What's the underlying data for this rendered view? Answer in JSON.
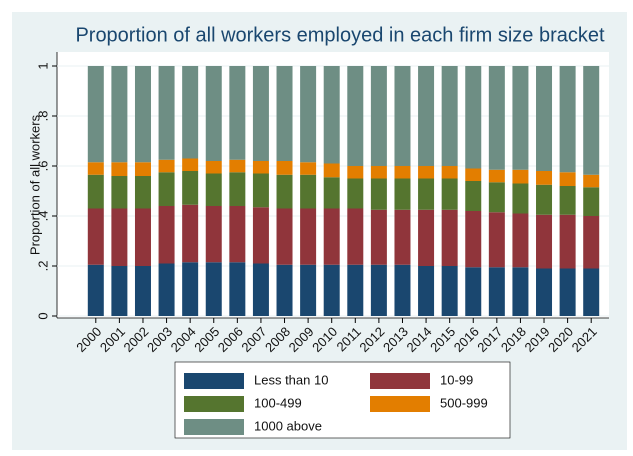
{
  "chart_data": {
    "type": "stacked_bar",
    "title": "Proportion of all workers employed in each firm size bracket",
    "y_label": "Proportion of all workers",
    "categories": [
      "2000",
      "2001",
      "2002",
      "2003",
      "2004",
      "2005",
      "2006",
      "2007",
      "2008",
      "2009",
      "2010",
      "2011",
      "2012",
      "2013",
      "2014",
      "2015",
      "2016",
      "2017",
      "2018",
      "2019",
      "2020",
      "2021"
    ],
    "series": [
      {
        "name": "Less than 10",
        "color": "#1a476f",
        "values": [
          0.205,
          0.2,
          0.2,
          0.21,
          0.215,
          0.215,
          0.215,
          0.21,
          0.205,
          0.205,
          0.205,
          0.205,
          0.205,
          0.205,
          0.2,
          0.2,
          0.195,
          0.195,
          0.195,
          0.19,
          0.19,
          0.19
        ]
      },
      {
        "name": "10-99",
        "color": "#90353b",
        "values": [
          0.225,
          0.23,
          0.23,
          0.23,
          0.23,
          0.225,
          0.225,
          0.225,
          0.225,
          0.225,
          0.225,
          0.225,
          0.22,
          0.22,
          0.225,
          0.225,
          0.225,
          0.22,
          0.215,
          0.215,
          0.215,
          0.21
        ]
      },
      {
        "name": "100-499",
        "color": "#55752f",
        "values": [
          0.135,
          0.13,
          0.13,
          0.135,
          0.135,
          0.13,
          0.135,
          0.135,
          0.135,
          0.135,
          0.125,
          0.12,
          0.125,
          0.125,
          0.125,
          0.125,
          0.12,
          0.12,
          0.12,
          0.12,
          0.115,
          0.115
        ]
      },
      {
        "name": "500-999",
        "color": "#e37e00",
        "values": [
          0.05,
          0.055,
          0.055,
          0.05,
          0.05,
          0.05,
          0.05,
          0.05,
          0.055,
          0.05,
          0.055,
          0.05,
          0.05,
          0.05,
          0.05,
          0.05,
          0.05,
          0.05,
          0.055,
          0.055,
          0.055,
          0.05
        ]
      },
      {
        "name": "1000 above",
        "color": "#6e8e84",
        "values": [
          0.385,
          0.385,
          0.385,
          0.375,
          0.37,
          0.38,
          0.375,
          0.38,
          0.38,
          0.385,
          0.39,
          0.4,
          0.4,
          0.4,
          0.4,
          0.4,
          0.41,
          0.415,
          0.415,
          0.42,
          0.425,
          0.435
        ]
      }
    ],
    "ylim": [
      0,
      1
    ],
    "yticks": [
      0,
      {
        "value": 0.2,
        "label": ".2"
      },
      {
        "value": 0.4,
        "label": ".4"
      },
      {
        "value": 0.6,
        "label": ".6"
      },
      {
        "value": 0.8,
        "label": ".8"
      },
      1
    ],
    "grid": true
  }
}
